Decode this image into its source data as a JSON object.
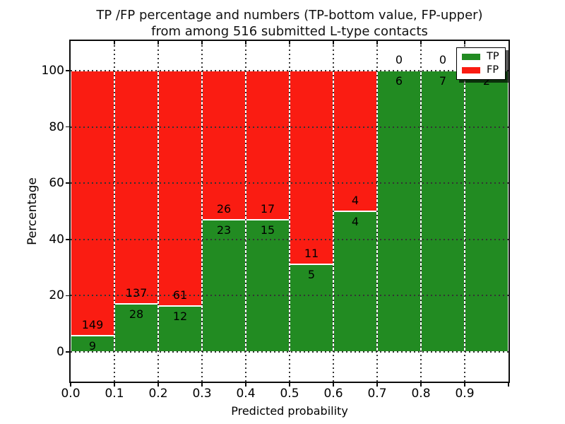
{
  "figure": {
    "title_line1": "TP /FP percentage and numbers (TP-bottom value, FP-upper)",
    "title_line2": "from among 516 submitted L-type contacts"
  },
  "chart_data": {
    "type": "bar",
    "stacked": true,
    "normalized_to_percent": true,
    "title": "TP /FP percentage and numbers (TP-bottom value, FP-upper)\nfrom among 516 submitted L-type contacts",
    "xlabel": "Predicted probability",
    "ylabel": "Percentage",
    "total_contacts": 516,
    "categories": [
      "0.0-0.1",
      "0.1-0.2",
      "0.2-0.3",
      "0.3-0.4",
      "0.4-0.5",
      "0.5-0.6",
      "0.6-0.7",
      "0.7-0.8",
      "0.8-0.9",
      "0.9-1.0"
    ],
    "series": [
      {
        "name": "TP",
        "color": "#228b22",
        "values": [
          9,
          28,
          12,
          23,
          15,
          5,
          4,
          6,
          7,
          2
        ]
      },
      {
        "name": "FP",
        "color": "#fa1c12",
        "values": [
          149,
          137,
          61,
          26,
          17,
          11,
          4,
          0,
          0,
          0
        ]
      }
    ],
    "tp_percent": [
      5.7,
      17.0,
      16.4,
      46.9,
      46.9,
      31.2,
      50.0,
      100.0,
      100.0,
      100.0
    ],
    "x_ticks": [
      "0.0",
      "0.1",
      "0.2",
      "0.3",
      "0.4",
      "0.5",
      "0.6",
      "0.7",
      "0.8",
      "0.9"
    ],
    "y_ticks": [
      "0",
      "20",
      "40",
      "60",
      "80",
      "100"
    ],
    "xlim": [
      0.0,
      1.0
    ],
    "ylim": [
      -10.5,
      110.5
    ],
    "grid": "dotted",
    "bar_edge_color": "#ffffff",
    "legend": {
      "position": "upper right",
      "entries": [
        {
          "label": "TP",
          "color": "#228b22"
        },
        {
          "label": "FP",
          "color": "#fa1c12"
        }
      ]
    }
  }
}
